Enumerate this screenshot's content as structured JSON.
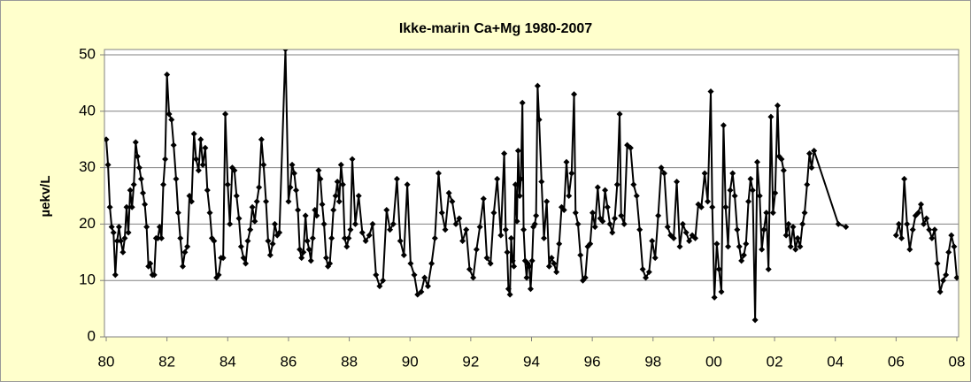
{
  "chart_data": {
    "type": "line",
    "title": "Ikke-marin Ca+Mg 1980-2007",
    "y_label": "µekv/L",
    "xlim": [
      1980,
      2008
    ],
    "ylim": [
      0,
      50
    ],
    "xticks": [
      {
        "value": 1980,
        "label": "80"
      },
      {
        "value": 1982,
        "label": "82"
      },
      {
        "value": 1984,
        "label": "84"
      },
      {
        "value": 1986,
        "label": "86"
      },
      {
        "value": 1988,
        "label": "88"
      },
      {
        "value": 1990,
        "label": "90"
      },
      {
        "value": 1992,
        "label": "92"
      },
      {
        "value": 1994,
        "label": "94"
      },
      {
        "value": 1996,
        "label": "96"
      },
      {
        "value": 1998,
        "label": "98"
      },
      {
        "value": 2000,
        "label": "00"
      },
      {
        "value": 2002,
        "label": "02"
      },
      {
        "value": 2004,
        "label": "04"
      },
      {
        "value": 2006,
        "label": "06"
      },
      {
        "value": 2008,
        "label": "08"
      }
    ],
    "yticks": [
      0,
      10,
      20,
      30,
      40,
      50
    ],
    "grid": true,
    "series": [
      {
        "color": "#000000",
        "x": [
          1980,
          1980.06,
          1980.12,
          1980.18,
          1980.24,
          1980.3,
          1980.36,
          1980.42,
          1980.48,
          1980.55,
          1980.61,
          1980.67,
          1980.73,
          1980.79,
          1980.85,
          1980.91,
          1980.97,
          1981.03,
          1981.09,
          1981.15,
          1981.21,
          1981.27,
          1981.33,
          1981.39,
          1981.45,
          1981.52,
          1981.58,
          1981.64,
          1981.7,
          1981.76,
          1981.82,
          1981.88,
          1981.94,
          1982,
          1982.07,
          1982.15,
          1982.22,
          1982.3,
          1982.37,
          1982.44,
          1982.52,
          1982.59,
          1982.67,
          1982.74,
          1982.81,
          1982.89,
          1982.96,
          1983.04,
          1983.11,
          1983.18,
          1983.26,
          1983.33,
          1983.41,
          1983.48,
          1983.55,
          1983.63,
          1983.7,
          1983.78,
          1983.85,
          1983.92,
          1984,
          1984.07,
          1984.15,
          1984.22,
          1984.29,
          1984.37,
          1984.44,
          1984.52,
          1984.59,
          1984.66,
          1984.74,
          1984.81,
          1984.89,
          1984.96,
          1985.03,
          1985.11,
          1985.18,
          1985.26,
          1985.33,
          1985.4,
          1985.48,
          1985.55,
          1985.63,
          1985.7,
          1985.9,
          1986,
          1986.06,
          1986.12,
          1986.19,
          1986.25,
          1986.31,
          1986.37,
          1986.43,
          1986.49,
          1986.56,
          1986.62,
          1986.68,
          1986.74,
          1986.8,
          1986.87,
          1986.93,
          1986.99,
          1987.05,
          1987.11,
          1987.17,
          1987.24,
          1987.3,
          1987.36,
          1987.42,
          1987.48,
          1987.55,
          1987.61,
          1987.67,
          1987.73,
          1987.79,
          1987.85,
          1987.92,
          1987.98,
          1988.04,
          1988.1,
          1988.2,
          1988.31,
          1988.43,
          1988.54,
          1988.66,
          1988.77,
          1988.88,
          1989,
          1989.11,
          1989.23,
          1989.34,
          1989.45,
          1989.57,
          1989.68,
          1989.8,
          1989.91,
          1990.02,
          1990.14,
          1990.25,
          1990.37,
          1990.48,
          1990.59,
          1990.71,
          1990.82,
          1990.94,
          1991.05,
          1991.16,
          1991.28,
          1991.39,
          1991.51,
          1991.62,
          1991.73,
          1991.85,
          1991.96,
          1992.08,
          1992.19,
          1992.3,
          1992.42,
          1992.53,
          1992.65,
          1992.76,
          1992.87,
          1992.99,
          1993.1,
          1993.15,
          1993.2,
          1993.24,
          1993.29,
          1993.33,
          1993.38,
          1993.42,
          1993.47,
          1993.52,
          1993.56,
          1993.61,
          1993.65,
          1993.7,
          1993.74,
          1993.79,
          1993.84,
          1993.88,
          1993.93,
          1993.97,
          1994.02,
          1994.06,
          1994.11,
          1994.15,
          1994.2,
          1994.25,
          1994.33,
          1994.41,
          1994.5,
          1994.58,
          1994.66,
          1994.74,
          1994.82,
          1994.91,
          1994.99,
          1995.07,
          1995.15,
          1995.23,
          1995.32,
          1995.4,
          1995.45,
          1995.53,
          1995.61,
          1995.69,
          1995.77,
          1995.85,
          1995.93,
          1996.01,
          1996.09,
          1996.18,
          1996.26,
          1996.34,
          1996.42,
          1996.5,
          1996.58,
          1996.66,
          1996.74,
          1996.82,
          1996.9,
          1996.95,
          1997.05,
          1997.15,
          1997.26,
          1997.36,
          1997.46,
          1997.56,
          1997.66,
          1997.76,
          1997.87,
          1997.97,
          1998.07,
          1998.17,
          1998.27,
          1998.37,
          1998.48,
          1998.58,
          1998.68,
          1998.78,
          1998.88,
          1998.98,
          1999.09,
          1999.19,
          1999.29,
          1999.39,
          1999.49,
          1999.59,
          1999.7,
          1999.8,
          1999.9,
          1999.95,
          2000.02,
          2000.1,
          2000.17,
          2000.25,
          2000.32,
          2000.39,
          2000.47,
          2000.54,
          2000.62,
          2000.69,
          2000.77,
          2000.84,
          2000.91,
          2000.99,
          2001.06,
          2001.14,
          2001.21,
          2001.28,
          2001.36,
          2001.43,
          2001.51,
          2001.58,
          2001.65,
          2001.73,
          2001.8,
          2001.88,
          2001.95,
          2002.02,
          2002.1,
          2002.15,
          2002.23,
          2002.3,
          2002.38,
          2002.46,
          2002.53,
          2002.61,
          2002.69,
          2002.76,
          2002.84,
          2002.92,
          2002.99,
          2003.07,
          2003.15,
          2003.22,
          2003.3,
          2004.1,
          2004.35,
          2005.2,
          2006,
          2006.09,
          2006.18,
          2006.27,
          2006.36,
          2006.45,
          2006.55,
          2006.64,
          2006.73,
          2006.82,
          2006.91,
          2007,
          2007.09,
          2007.18,
          2007.27,
          2007.36,
          2007.45,
          2007.55,
          2007.64,
          2007.73,
          2007.82,
          2007.91,
          2008
        ],
        "values": [
          35,
          30.5,
          23,
          19.5,
          18.5,
          11,
          17,
          19.5,
          17,
          15,
          17.5,
          23,
          18.5,
          26,
          23,
          27,
          34.5,
          32,
          30,
          28,
          25.5,
          23.5,
          19.5,
          12.5,
          13,
          11,
          11,
          17.5,
          17.5,
          19.5,
          17.5,
          27,
          31.5,
          46.5,
          39.5,
          38.5,
          34,
          28,
          22,
          17.5,
          12.5,
          15,
          16,
          25,
          24,
          36,
          31.5,
          29.5,
          35,
          30.5,
          33.5,
          26,
          22,
          17.5,
          17,
          10.5,
          11,
          14,
          14,
          39.5,
          27,
          20,
          30,
          29.5,
          25,
          21,
          16,
          14,
          13,
          17,
          19,
          23,
          20.5,
          24,
          26.5,
          35,
          30.5,
          24,
          17,
          14.5,
          16.5,
          20,
          18,
          18.5,
          51,
          24,
          26.5,
          30.5,
          29,
          26,
          22.5,
          15.5,
          14,
          15,
          21.5,
          17,
          15.5,
          13.5,
          17.5,
          22.5,
          21.5,
          29.5,
          28,
          23.5,
          20,
          14,
          12.5,
          13,
          17.5,
          22.5,
          25,
          27.5,
          24,
          30.5,
          27,
          17.5,
          16,
          17.5,
          19,
          31.5,
          20,
          25,
          18.5,
          17,
          18,
          20,
          11,
          9,
          10,
          22.5,
          19,
          20,
          28,
          17,
          14.5,
          27,
          13,
          11,
          7.5,
          8,
          10.5,
          9,
          13,
          17.5,
          29,
          22,
          19,
          25.5,
          24,
          20,
          21,
          17,
          19,
          12,
          10.5,
          15.5,
          19.5,
          24.5,
          14,
          13,
          22,
          28,
          18,
          32.5,
          19,
          15,
          8.5,
          7.5,
          17.5,
          13.5,
          12.5,
          27,
          20.5,
          33,
          25,
          28,
          41.5,
          19,
          13.5,
          10.5,
          13,
          12.5,
          8.5,
          13.5,
          19.5,
          20,
          21.5,
          44.5,
          38.5,
          27.5,
          17.5,
          24,
          12.5,
          14,
          13,
          11.5,
          16.5,
          23,
          22.5,
          31,
          25,
          29,
          43,
          22,
          20,
          14.5,
          10,
          10.5,
          16,
          16.5,
          22,
          19.5,
          26.5,
          21,
          20.5,
          26,
          23,
          20,
          18.5,
          21,
          27,
          39.5,
          21.5,
          20,
          34,
          33.5,
          27,
          25,
          19,
          12,
          10.5,
          11.5,
          17,
          14,
          21.5,
          30,
          29,
          19.5,
          18,
          17.5,
          27.5,
          16,
          20,
          18.5,
          17,
          18,
          17.5,
          23.5,
          23,
          29,
          24,
          43.5,
          23,
          7,
          16.5,
          12,
          8,
          37.5,
          23,
          16,
          26,
          29,
          25,
          19,
          16,
          13.5,
          14.5,
          16.5,
          24,
          28,
          26,
          3,
          31,
          25,
          15.5,
          19,
          22,
          12,
          39,
          22,
          25.5,
          41,
          32,
          31.5,
          29.5,
          18,
          20,
          16,
          19.5,
          15.5,
          17.5,
          16,
          20,
          22,
          27,
          32.5,
          30,
          33,
          20,
          19.5,
          null,
          18,
          20,
          17.5,
          28,
          20,
          15.5,
          19,
          21.5,
          22,
          23.5,
          20,
          21,
          19,
          17.5,
          19,
          13,
          8,
          10,
          11,
          15,
          18,
          16,
          10.5
        ]
      }
    ]
  }
}
